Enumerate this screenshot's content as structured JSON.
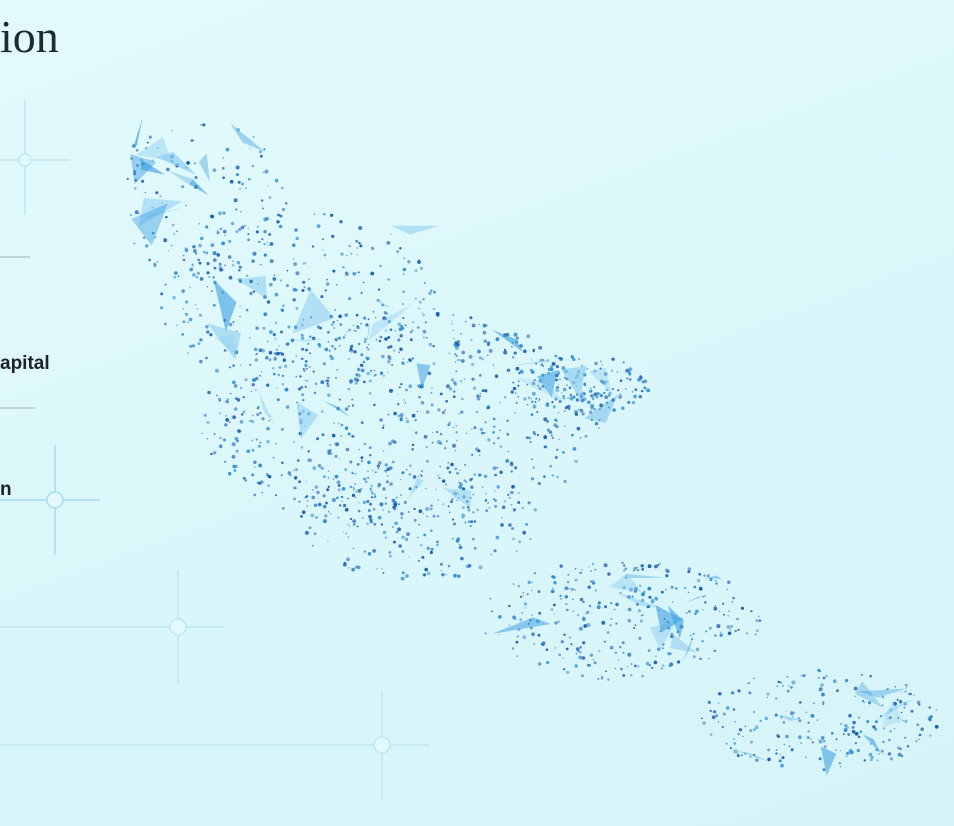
{
  "heading": {
    "text": "ion"
  },
  "items": [
    {
      "label": "apital"
    },
    {
      "label": "n"
    }
  ]
}
